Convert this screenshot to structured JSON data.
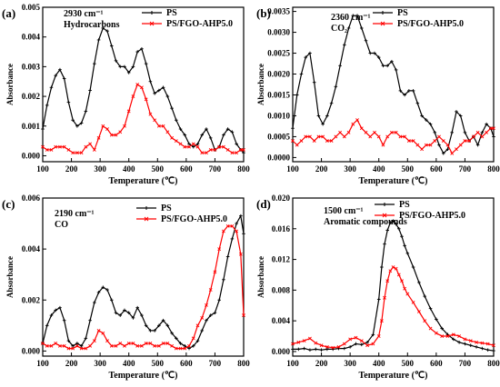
{
  "chart_data": [
    {
      "type": "line",
      "panel": "(a)",
      "annotation": [
        "2930 cm⁻¹",
        "Hydrocarbons"
      ],
      "xlabel": "Temperature (℃)",
      "ylabel": "Absorbance",
      "xlim": [
        100,
        800
      ],
      "ylim": [
        -0.0002,
        0.005
      ],
      "xticks": [
        100,
        200,
        300,
        400,
        500,
        600,
        700,
        800
      ],
      "yticks": [
        0.0,
        0.001,
        0.002,
        0.003,
        0.004,
        0.005
      ],
      "ytick_labels": [
        "0.000",
        "0.001",
        "0.002",
        "0.003",
        "0.004",
        "0.005"
      ],
      "legend": "top-right",
      "series": [
        {
          "name": "PS",
          "color": "#000000",
          "marker": "+",
          "x": [
            100,
            115,
            130,
            145,
            160,
            175,
            190,
            205,
            220,
            235,
            250,
            265,
            280,
            295,
            310,
            325,
            340,
            355,
            370,
            385,
            400,
            415,
            430,
            445,
            460,
            475,
            490,
            505,
            520,
            535,
            550,
            565,
            580,
            595,
            610,
            625,
            640,
            655,
            670,
            685,
            700,
            715,
            730,
            745,
            760,
            775,
            790,
            800
          ],
          "y": [
            0.0009,
            0.0017,
            0.0023,
            0.0027,
            0.0029,
            0.0026,
            0.0018,
            0.0012,
            0.001,
            0.0011,
            0.0015,
            0.0022,
            0.0031,
            0.0039,
            0.0043,
            0.0042,
            0.0037,
            0.0032,
            0.003,
            0.003,
            0.0028,
            0.003,
            0.0035,
            0.0036,
            0.0031,
            0.0025,
            0.0021,
            0.0022,
            0.0023,
            0.002,
            0.0016,
            0.0012,
            0.0009,
            0.0007,
            0.0004,
            0.0003,
            0.0004,
            0.0007,
            0.0009,
            0.0006,
            0.0002,
            0.0003,
            0.0007,
            0.0009,
            0.0008,
            0.0004,
            0.0002,
            0.0001
          ]
        },
        {
          "name": "PS/FGO-AHP5.0",
          "color": "#ff0000",
          "marker": "x",
          "x": [
            100,
            115,
            130,
            145,
            160,
            175,
            190,
            205,
            220,
            235,
            250,
            265,
            280,
            295,
            310,
            325,
            340,
            355,
            370,
            385,
            400,
            415,
            430,
            445,
            460,
            475,
            490,
            505,
            520,
            535,
            550,
            565,
            580,
            595,
            610,
            625,
            640,
            655,
            670,
            685,
            700,
            715,
            730,
            745,
            760,
            775,
            790,
            800
          ],
          "y": [
            0.0003,
            0.0002,
            0.0002,
            0.0003,
            0.0003,
            0.0003,
            0.0002,
            0.0001,
            0.0001,
            0.0001,
            0.0003,
            0.0004,
            0.0002,
            0.0006,
            0.001,
            0.0009,
            0.0007,
            0.0007,
            0.0008,
            0.001,
            0.0015,
            0.002,
            0.0024,
            0.0023,
            0.0019,
            0.0014,
            0.0012,
            0.001,
            0.001,
            0.0008,
            0.0006,
            0.0005,
            0.0004,
            0.0003,
            0.0003,
            0.0004,
            0.0003,
            0.0001,
            0.0001,
            0.0002,
            0.0002,
            0.0003,
            0.0003,
            0.0002,
            0.0001,
            0.0001,
            0.0002,
            0.0002
          ]
        }
      ]
    },
    {
      "type": "line",
      "panel": "(b)",
      "annotation": [
        "2360 cm⁻¹",
        "CO₂"
      ],
      "xlabel": "Temperature (℃)",
      "ylabel": "Absorbance",
      "xlim": [
        100,
        800
      ],
      "ylim": [
        -0.0001,
        0.0036
      ],
      "xticks": [
        100,
        200,
        300,
        400,
        500,
        600,
        700,
        800
      ],
      "yticks": [
        0.0,
        0.0005,
        0.001,
        0.0015,
        0.002,
        0.0025,
        0.003,
        0.0035
      ],
      "ytick_labels": [
        "0.0000",
        "0.0005",
        "0.0010",
        "0.0015",
        "0.0020",
        "0.0025",
        "0.0030",
        "0.0035"
      ],
      "legend": "top-right",
      "series": [
        {
          "name": "PS",
          "color": "#000000",
          "marker": "+",
          "x": [
            100,
            115,
            130,
            145,
            160,
            175,
            190,
            205,
            220,
            235,
            250,
            265,
            280,
            295,
            310,
            325,
            340,
            355,
            370,
            385,
            400,
            415,
            430,
            445,
            460,
            475,
            490,
            505,
            520,
            535,
            550,
            565,
            580,
            595,
            610,
            625,
            640,
            655,
            670,
            685,
            700,
            715,
            730,
            745,
            760,
            775,
            790,
            800
          ],
          "y": [
            0.0007,
            0.0015,
            0.002,
            0.0024,
            0.0025,
            0.0018,
            0.001,
            0.0008,
            0.001,
            0.0013,
            0.0017,
            0.0022,
            0.0027,
            0.0031,
            0.0034,
            0.0034,
            0.0031,
            0.0028,
            0.0025,
            0.0025,
            0.0024,
            0.0022,
            0.0022,
            0.0023,
            0.0021,
            0.0016,
            0.0015,
            0.0016,
            0.0016,
            0.0013,
            0.001,
            0.0009,
            0.0008,
            0.0006,
            0.0003,
            0.0001,
            0.0002,
            0.0006,
            0.0011,
            0.001,
            0.0006,
            0.0004,
            0.0005,
            0.0003,
            0.0006,
            0.0008,
            0.0007,
            0.0005
          ]
        },
        {
          "name": "PS/FGO-AHP5.0",
          "color": "#ff0000",
          "marker": "x",
          "x": [
            100,
            115,
            130,
            145,
            160,
            175,
            190,
            205,
            220,
            235,
            250,
            265,
            280,
            295,
            310,
            325,
            340,
            355,
            370,
            385,
            400,
            415,
            430,
            445,
            460,
            475,
            490,
            505,
            520,
            535,
            550,
            565,
            580,
            595,
            610,
            625,
            640,
            655,
            670,
            685,
            700,
            715,
            730,
            745,
            760,
            775,
            790,
            800
          ],
          "y": [
            0.0004,
            0.0003,
            0.0004,
            0.0005,
            0.0005,
            0.0004,
            0.0005,
            0.0005,
            0.0004,
            0.0004,
            0.0005,
            0.0006,
            0.0005,
            0.0006,
            0.0008,
            0.0009,
            0.0007,
            0.0006,
            0.0005,
            0.0006,
            0.0005,
            0.0003,
            0.0005,
            0.0006,
            0.0006,
            0.0005,
            0.0005,
            0.0004,
            0.0004,
            0.0003,
            0.0002,
            0.0003,
            0.0003,
            0.0004,
            0.0005,
            0.0004,
            0.0003,
            0.0001,
            0.0002,
            0.0003,
            0.0004,
            0.0004,
            0.0005,
            0.0006,
            0.0005,
            0.0006,
            0.0007,
            0.0007
          ]
        }
      ]
    },
    {
      "type": "line",
      "panel": "(c)",
      "annotation": [
        "2190 cm⁻¹",
        "CO"
      ],
      "xlabel": "Temperature (℃)",
      "ylabel": "Absorbance",
      "xlim": [
        100,
        800
      ],
      "ylim": [
        -0.0002,
        0.006
      ],
      "xticks": [
        100,
        200,
        300,
        400,
        500,
        600,
        700,
        800
      ],
      "yticks": [
        0.0,
        0.002,
        0.004,
        0.006
      ],
      "ytick_labels": [
        "0.000",
        "0.002",
        "0.004",
        "0.006"
      ],
      "legend": "top-center",
      "series": [
        {
          "name": "PS",
          "color": "#000000",
          "marker": "+",
          "x": [
            100,
            115,
            130,
            145,
            160,
            175,
            190,
            205,
            220,
            235,
            250,
            265,
            280,
            295,
            310,
            325,
            340,
            355,
            370,
            385,
            400,
            415,
            430,
            445,
            460,
            475,
            490,
            505,
            520,
            535,
            550,
            565,
            580,
            595,
            610,
            625,
            640,
            655,
            670,
            685,
            700,
            715,
            730,
            745,
            760,
            775,
            790,
            800
          ],
          "y": [
            0.0003,
            0.001,
            0.0014,
            0.0016,
            0.0017,
            0.0012,
            0.0004,
            0.0002,
            0.0003,
            0.0002,
            0.0005,
            0.0012,
            0.0019,
            0.0023,
            0.0025,
            0.0024,
            0.002,
            0.0015,
            0.0014,
            0.0016,
            0.0015,
            0.0013,
            0.0017,
            0.0014,
            0.001,
            0.0008,
            0.0008,
            0.001,
            0.0012,
            0.001,
            0.0007,
            0.0005,
            0.0003,
            0.0002,
            0.0001,
            0.0002,
            0.0004,
            0.0008,
            0.0012,
            0.0014,
            0.0015,
            0.002,
            0.0028,
            0.0037,
            0.0044,
            0.005,
            0.0053,
            0.0046
          ]
        },
        {
          "name": "PS/FGO-AHP5.0",
          "color": "#ff0000",
          "marker": "x",
          "x": [
            100,
            115,
            130,
            145,
            160,
            175,
            190,
            205,
            220,
            235,
            250,
            265,
            280,
            295,
            310,
            325,
            340,
            355,
            370,
            385,
            400,
            415,
            430,
            445,
            460,
            475,
            490,
            505,
            520,
            535,
            550,
            565,
            580,
            595,
            610,
            625,
            640,
            655,
            670,
            685,
            700,
            715,
            730,
            745,
            760,
            775,
            790,
            800
          ],
          "y": [
            0.0003,
            0.0002,
            0.0002,
            0.0003,
            0.0002,
            0.0002,
            0.0001,
            0.0001,
            0.0002,
            0.0001,
            0.0001,
            0.0002,
            0.0004,
            0.0008,
            0.0007,
            0.0004,
            0.0002,
            0.0002,
            0.0003,
            0.0002,
            0.0003,
            0.0003,
            0.0002,
            0.0002,
            0.0003,
            0.0003,
            0.0002,
            0.0002,
            0.0003,
            0.0003,
            0.0002,
            0.0001,
            0.0001,
            0.0001,
            0.0002,
            0.0005,
            0.001,
            0.0013,
            0.0018,
            0.0024,
            0.0031,
            0.004,
            0.0047,
            0.0049,
            0.0049,
            0.0047,
            0.0038,
            0.0014
          ]
        }
      ]
    },
    {
      "type": "line",
      "panel": "(d)",
      "annotation": [
        "1500 cm⁻¹",
        "Aromatic compounds"
      ],
      "xlabel": "Temperature (℃)",
      "ylabel": "Absorbance",
      "xlim": [
        100,
        800
      ],
      "ylim": [
        -0.0006,
        0.02
      ],
      "xticks": [
        100,
        200,
        300,
        400,
        500,
        600,
        700,
        800
      ],
      "yticks": [
        0.0,
        0.004,
        0.008,
        0.012,
        0.016,
        0.02
      ],
      "ytick_labels": [
        "0.000",
        "0.004",
        "0.008",
        "0.012",
        "0.016",
        "0.020"
      ],
      "legend": "top-right",
      "series": [
        {
          "name": "PS",
          "color": "#000000",
          "marker": "+",
          "x": [
            100,
            120,
            140,
            160,
            180,
            200,
            220,
            240,
            260,
            280,
            300,
            320,
            340,
            360,
            380,
            400,
            410,
            420,
            430,
            440,
            450,
            460,
            470,
            480,
            490,
            500,
            520,
            540,
            560,
            580,
            600,
            620,
            640,
            660,
            680,
            700,
            720,
            740,
            760,
            780,
            800
          ],
          "y": [
            0.0003,
            0.0003,
            0.0004,
            0.0002,
            0.0003,
            0.0002,
            0.0003,
            0.0003,
            0.0004,
            0.0004,
            0.0006,
            0.001,
            0.0009,
            0.0012,
            0.0022,
            0.0068,
            0.011,
            0.014,
            0.0158,
            0.0168,
            0.017,
            0.0166,
            0.016,
            0.015,
            0.0138,
            0.0128,
            0.011,
            0.009,
            0.0072,
            0.0056,
            0.0042,
            0.003,
            0.0022,
            0.0016,
            0.0012,
            0.001,
            0.0008,
            0.0006,
            0.0004,
            0.0002,
            0.0001
          ]
        },
        {
          "name": "PS/FGO-AHP5.0",
          "color": "#ff0000",
          "marker": "x",
          "x": [
            100,
            120,
            140,
            160,
            180,
            200,
            220,
            240,
            260,
            280,
            300,
            320,
            340,
            360,
            380,
            400,
            410,
            420,
            430,
            440,
            450,
            460,
            470,
            480,
            490,
            500,
            520,
            540,
            560,
            580,
            600,
            620,
            640,
            660,
            680,
            700,
            720,
            740,
            760,
            780,
            800
          ],
          "y": [
            0.001,
            0.0012,
            0.0014,
            0.0017,
            0.0011,
            0.0008,
            0.0006,
            0.0005,
            0.0006,
            0.001,
            0.0016,
            0.0018,
            0.0014,
            0.0008,
            0.001,
            0.002,
            0.004,
            0.007,
            0.0092,
            0.0105,
            0.011,
            0.0108,
            0.01,
            0.0092,
            0.0082,
            0.0075,
            0.0064,
            0.0052,
            0.004,
            0.003,
            0.0024,
            0.002,
            0.002,
            0.0022,
            0.002,
            0.0016,
            0.0014,
            0.0012,
            0.0011,
            0.001,
            0.0008
          ]
        }
      ]
    }
  ]
}
